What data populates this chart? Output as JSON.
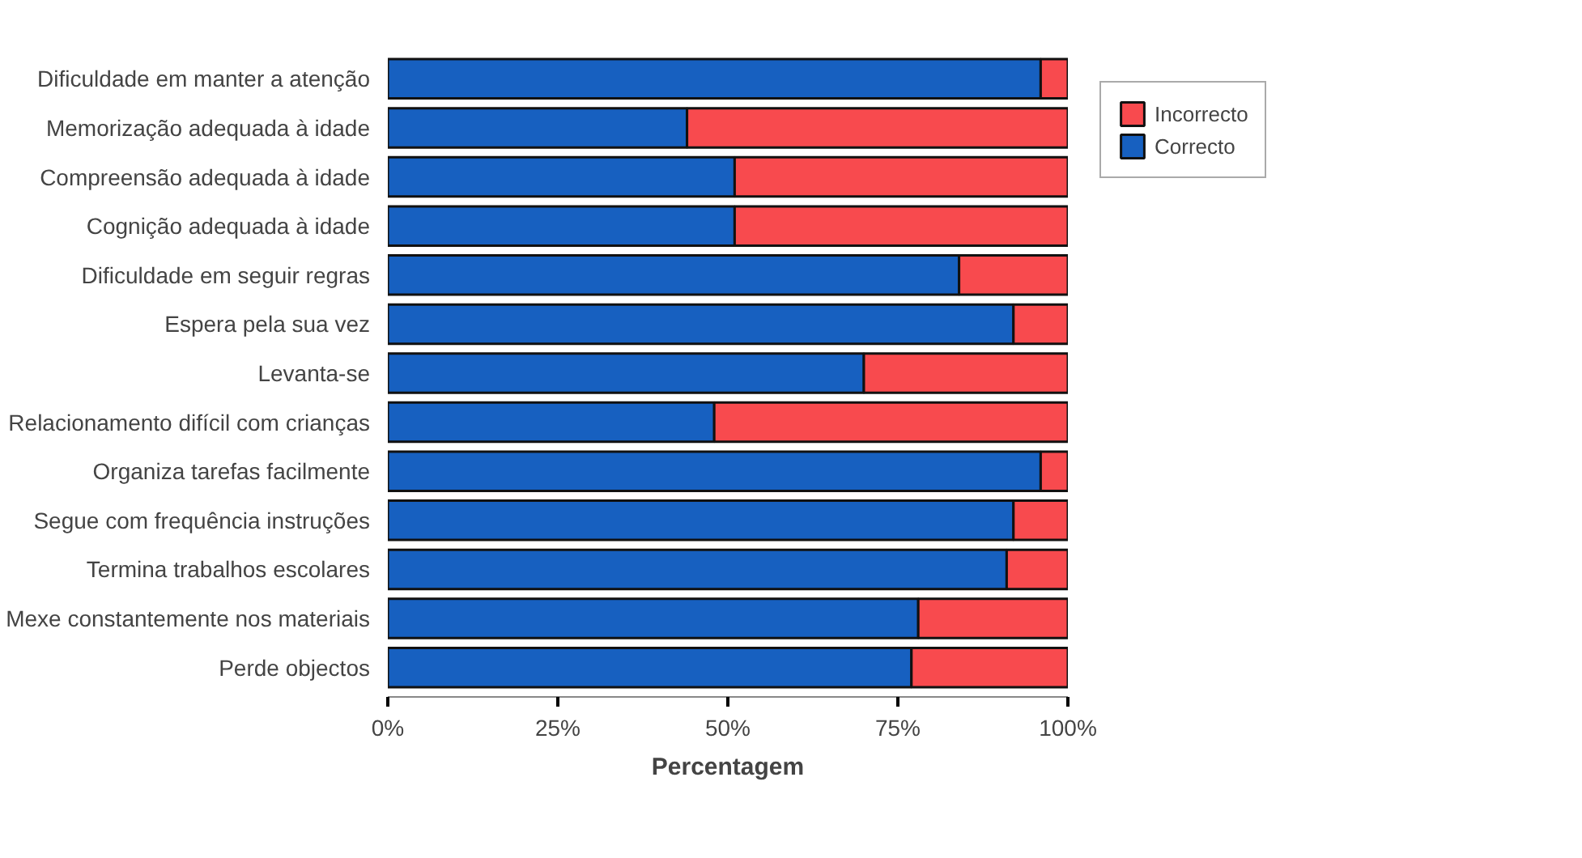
{
  "chart_data": {
    "type": "bar",
    "orientation": "horizontal",
    "stacked": true,
    "xlabel": "Percentagem",
    "categories": [
      "Dificuldade em manter a atenção",
      "Memorização adequada à idade",
      "Compreensão adequada à idade",
      "Cognição adequada à idade",
      "Dificuldade em seguir regras",
      "Espera pela sua vez",
      "Levanta-se",
      "Relacionamento difícil com crianças",
      "Organiza tarefas facilmente",
      "Segue com frequência instruções",
      "Termina trabalhos escolares",
      "Mexe constantemente nos materiais",
      "Perde objectos"
    ],
    "series": [
      {
        "name": "Correcto",
        "color": "#1760c0",
        "values": [
          96,
          44,
          51,
          51,
          84,
          92,
          70,
          48,
          96,
          92,
          91,
          78,
          77
        ]
      },
      {
        "name": "Incorrecto",
        "color": "#f84a4e",
        "values": [
          4,
          56,
          49,
          49,
          16,
          8,
          30,
          52,
          4,
          8,
          9,
          22,
          23
        ]
      }
    ],
    "xlim": [
      0,
      100
    ],
    "xticks": [
      {
        "value": 0,
        "label": "0%"
      },
      {
        "value": 25,
        "label": "25%"
      },
      {
        "value": 50,
        "label": "50%"
      },
      {
        "value": 75,
        "label": "75%"
      },
      {
        "value": 100,
        "label": "100%"
      }
    ],
    "grid": false,
    "legend": "right"
  }
}
